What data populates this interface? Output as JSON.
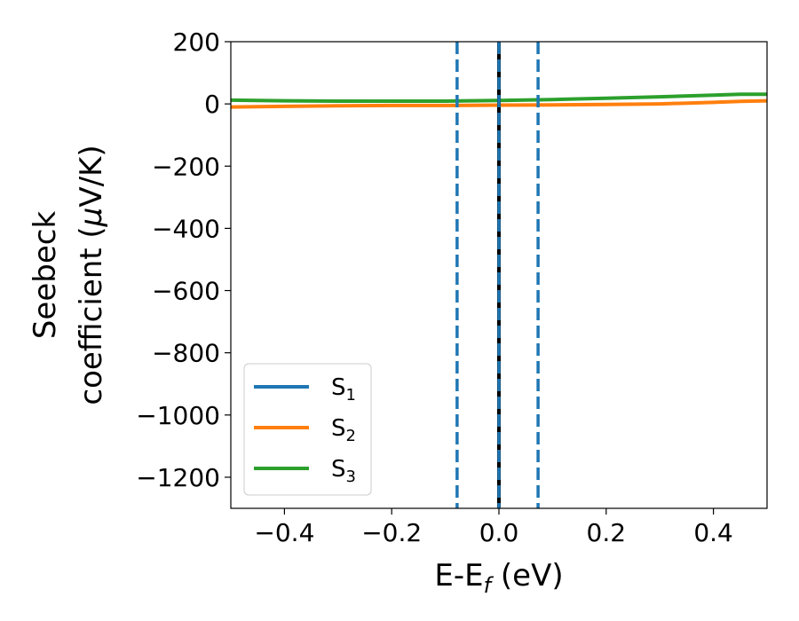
{
  "chart_data": {
    "type": "line",
    "title": "",
    "xlabel": "E-E",
    "xlabel_sub": "f",
    "xlabel_unit": " (eV)",
    "ylabel_line1": "Seebeck",
    "ylabel_line2": "coefficient  (",
    "ylabel_mu": "μ",
    "ylabel_unit": "V/K)",
    "xlim": [
      -0.5,
      0.5
    ],
    "ylim": [
      -1300,
      200
    ],
    "xticks": [
      -0.4,
      -0.2,
      0.0,
      0.2,
      0.4
    ],
    "xtick_labels": [
      "−0.4",
      "−0.2",
      "0.0",
      "0.2",
      "0.4"
    ],
    "yticks": [
      200,
      0,
      -200,
      -400,
      -600,
      -800,
      -1000,
      -1200
    ],
    "ytick_labels": [
      "200",
      "0",
      "−200",
      "−400",
      "−600",
      "−800",
      "−1000",
      "−1200"
    ],
    "grid": false,
    "legend_position": "lower-left",
    "vertical_lines": [
      {
        "x": -0.078,
        "style": "dashed",
        "color": "#1f77b4"
      },
      {
        "x": 0.0,
        "style": "solid",
        "color": "#000000"
      },
      {
        "x": 0.0,
        "style": "dashed",
        "color": "#1f77b4"
      },
      {
        "x": 0.073,
        "style": "dashed",
        "color": "#1f77b4"
      }
    ],
    "series": [
      {
        "name": "S",
        "name_sub": "1",
        "color": "#1f77b4",
        "x": [],
        "y": []
      },
      {
        "name": "S",
        "name_sub": "2",
        "color": "#ff7f0e",
        "x": [
          -0.5,
          -0.4,
          -0.3,
          -0.2,
          -0.1,
          0.0,
          0.1,
          0.2,
          0.3,
          0.4,
          0.45,
          0.5
        ],
        "y": [
          -10,
          -8,
          -6,
          -5,
          -5,
          -4,
          -3,
          -2,
          0,
          5,
          8,
          10
        ]
      },
      {
        "name": "S",
        "name_sub": "3",
        "color": "#2ca02c",
        "x": [
          -0.5,
          -0.4,
          -0.3,
          -0.2,
          -0.1,
          0.0,
          0.1,
          0.2,
          0.3,
          0.4,
          0.45,
          0.5
        ],
        "y": [
          12,
          10,
          9,
          9,
          9,
          11,
          14,
          18,
          23,
          28,
          31,
          31
        ]
      }
    ]
  }
}
